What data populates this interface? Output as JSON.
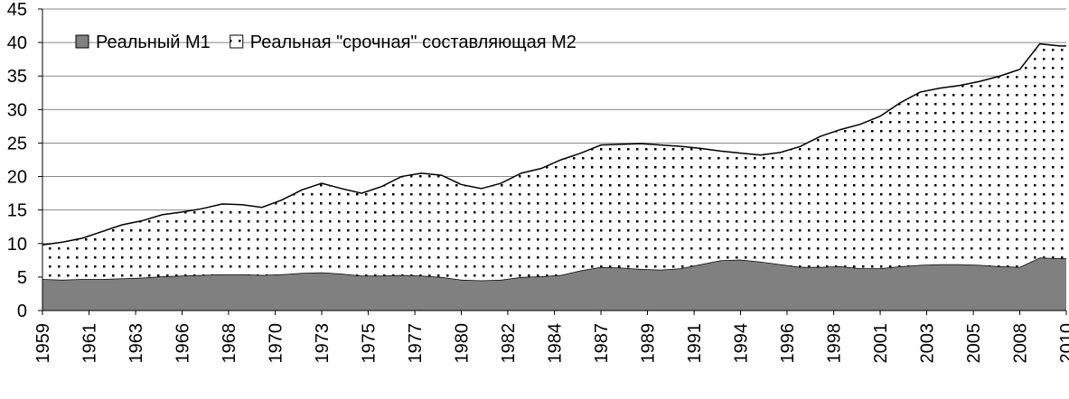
{
  "chart_data": {
    "type": "stacked_area",
    "x": [
      1959,
      1960,
      1961,
      1962,
      1963,
      1964,
      1965,
      1966,
      1967,
      1968,
      1969,
      1970,
      1971,
      1972,
      1973,
      1974,
      1975,
      1976,
      1977,
      1978,
      1979,
      1980,
      1981,
      1982,
      1983,
      1984,
      1985,
      1986,
      1987,
      1988,
      1989,
      1990,
      1991,
      1992,
      1993,
      1994,
      1995,
      1996,
      1997,
      1998,
      1999,
      2000,
      2001,
      2002,
      2003,
      2004,
      2005,
      2006,
      2007,
      2008,
      2009,
      2010,
      2010.33
    ],
    "series": [
      {
        "name": "Реальный М1",
        "color": "#808080",
        "fill": "solid",
        "values": [
          4.7,
          4.6,
          4.7,
          4.7,
          4.8,
          4.9,
          5.1,
          5.2,
          5.3,
          5.4,
          5.4,
          5.3,
          5.4,
          5.6,
          5.7,
          5.5,
          5.2,
          5.2,
          5.3,
          5.2,
          5.0,
          4.6,
          4.5,
          4.6,
          5.0,
          5.1,
          5.3,
          6.0,
          6.5,
          6.4,
          6.2,
          6.1,
          6.3,
          6.9,
          7.5,
          7.6,
          7.3,
          6.9,
          6.5,
          6.5,
          6.6,
          6.3,
          6.3,
          6.6,
          6.8,
          6.9,
          6.9,
          6.8,
          6.6,
          6.5,
          7.9,
          7.8,
          7.8
        ]
      },
      {
        "name": "Реальная \"срочная\" составляющая М2",
        "color": "#000000",
        "fill": "dotted",
        "values": [
          5.1,
          5.6,
          6.1,
          7.1,
          8.0,
          8.5,
          9.2,
          9.5,
          9.9,
          10.5,
          10.4,
          10.1,
          11.1,
          12.4,
          13.3,
          12.7,
          12.3,
          13.3,
          14.7,
          15.3,
          15.2,
          14.2,
          13.7,
          14.4,
          15.5,
          16.1,
          17.2,
          17.5,
          18.2,
          18.4,
          18.7,
          18.6,
          18.2,
          17.3,
          16.3,
          15.9,
          15.9,
          16.7,
          18.0,
          19.5,
          20.4,
          21.5,
          22.7,
          24.4,
          25.8,
          26.3,
          26.7,
          27.4,
          28.4,
          29.5,
          31.9,
          31.7,
          31.7
        ]
      }
    ],
    "xlim": [
      1959,
      2010.33
    ],
    "xticks": [
      1959,
      {
        "value": 1961.33,
        "label": "1961"
      },
      {
        "value": 1963.67,
        "label": "1963"
      },
      1966,
      {
        "value": 1968.33,
        "label": "1968"
      },
      {
        "value": 1970.67,
        "label": "1970"
      },
      1973,
      {
        "value": 1975.33,
        "label": "1975"
      },
      {
        "value": 1977.67,
        "label": "1977"
      },
      1980,
      {
        "value": 1982.33,
        "label": "1982"
      },
      {
        "value": 1984.67,
        "label": "1984"
      },
      1987,
      {
        "value": 1989.33,
        "label": "1989"
      },
      {
        "value": 1991.67,
        "label": "1991"
      },
      1994,
      {
        "value": 1996.33,
        "label": "1996"
      },
      {
        "value": 1998.67,
        "label": "1998"
      },
      2001,
      {
        "value": 2003.33,
        "label": "2003"
      },
      {
        "value": 2005.67,
        "label": "2005"
      },
      2008,
      {
        "value": 2010.33,
        "label": "2010"
      }
    ],
    "ylim": [
      0,
      45
    ],
    "yticks": [
      0,
      5,
      10,
      15,
      20,
      25,
      30,
      35,
      40,
      45
    ],
    "grid": true,
    "legend": "top-left"
  }
}
